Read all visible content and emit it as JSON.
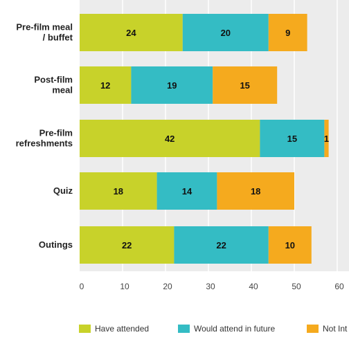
{
  "chart_data": {
    "type": "bar",
    "orientation": "horizontal",
    "stacked": true,
    "categories": [
      [
        "Pre-film meal",
        "/ buffet"
      ],
      [
        "Post-film",
        "meal"
      ],
      [
        "Pre-film",
        "refreshments"
      ],
      [
        "Quiz"
      ],
      [
        "Outings"
      ]
    ],
    "series": [
      {
        "name": "Have attended",
        "color": "#c8d22a",
        "values": [
          24,
          12,
          42,
          18,
          22
        ]
      },
      {
        "name": "Would attend in future",
        "color": "#34bcc4",
        "values": [
          20,
          19,
          15,
          14,
          22
        ]
      },
      {
        "name": "Not Int",
        "color": "#f5aa1e",
        "values": [
          9,
          15,
          1,
          18,
          10
        ]
      }
    ],
    "xlim": [
      0,
      60
    ],
    "xticks": [
      0,
      10,
      20,
      30,
      40,
      50,
      60
    ],
    "grid": true,
    "plot_background": "#ececec",
    "gridline_color": "#ffffff",
    "legend_position": "bottom"
  }
}
